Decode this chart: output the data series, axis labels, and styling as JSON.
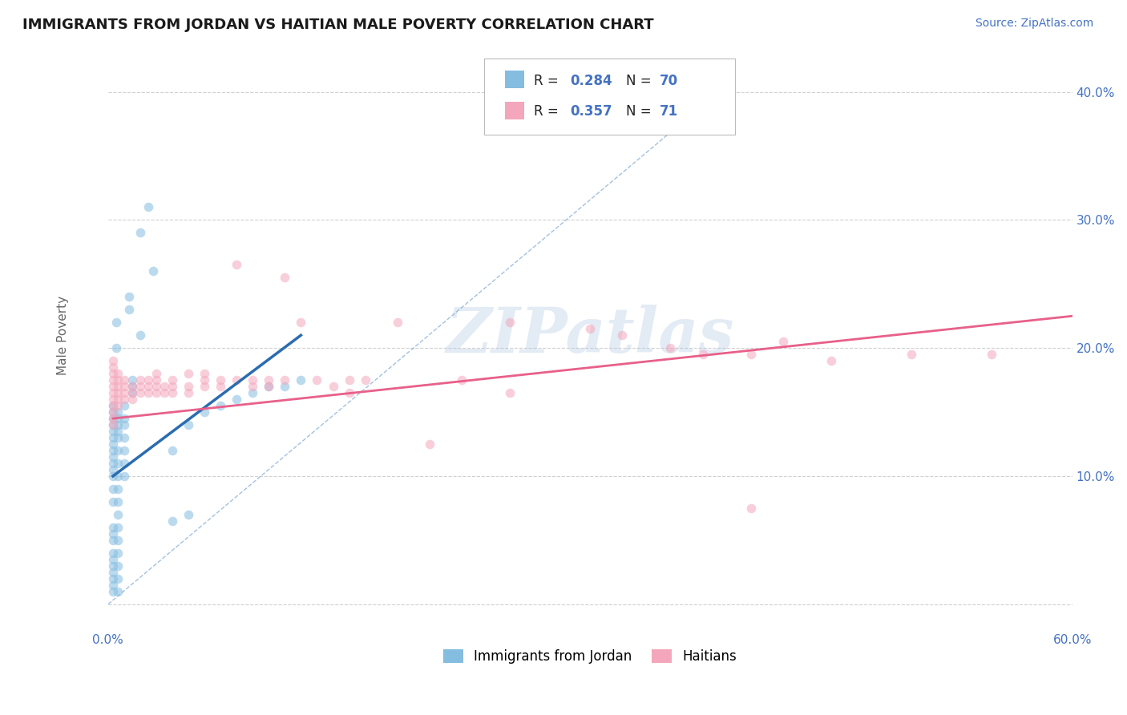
{
  "title": "IMMIGRANTS FROM JORDAN VS HAITIAN MALE POVERTY CORRELATION CHART",
  "source": "Source: ZipAtlas.com",
  "ylabel": "Male Poverty",
  "watermark": "ZIPatlas",
  "xlim": [
    0.0,
    0.6
  ],
  "ylim": [
    -0.02,
    0.44
  ],
  "xticks": [
    0.0,
    0.1,
    0.2,
    0.3,
    0.4,
    0.5,
    0.6
  ],
  "xticklabels": [
    "0.0%",
    "",
    "",
    "",
    "",
    "",
    "60.0%"
  ],
  "yticks": [
    0.0,
    0.1,
    0.2,
    0.3,
    0.4
  ],
  "yticklabels": [
    "",
    "10.0%",
    "20.0%",
    "30.0%",
    "40.0%"
  ],
  "color_jordan": "#85bde0",
  "color_haitian": "#f4a6bc",
  "color_jordan_line": "#2b6cb0",
  "color_haitian_line": "#e8608a",
  "jordan_scatter": [
    [
      0.003,
      0.08
    ],
    [
      0.003,
      0.09
    ],
    [
      0.003,
      0.1
    ],
    [
      0.003,
      0.105
    ],
    [
      0.003,
      0.11
    ],
    [
      0.003,
      0.115
    ],
    [
      0.003,
      0.12
    ],
    [
      0.003,
      0.125
    ],
    [
      0.003,
      0.13
    ],
    [
      0.003,
      0.135
    ],
    [
      0.003,
      0.14
    ],
    [
      0.003,
      0.145
    ],
    [
      0.003,
      0.15
    ],
    [
      0.003,
      0.155
    ],
    [
      0.003,
      0.06
    ],
    [
      0.003,
      0.055
    ],
    [
      0.003,
      0.05
    ],
    [
      0.003,
      0.04
    ],
    [
      0.003,
      0.035
    ],
    [
      0.003,
      0.03
    ],
    [
      0.003,
      0.025
    ],
    [
      0.003,
      0.02
    ],
    [
      0.003,
      0.015
    ],
    [
      0.003,
      0.01
    ],
    [
      0.006,
      0.15
    ],
    [
      0.006,
      0.145
    ],
    [
      0.006,
      0.14
    ],
    [
      0.006,
      0.135
    ],
    [
      0.006,
      0.13
    ],
    [
      0.006,
      0.12
    ],
    [
      0.006,
      0.11
    ],
    [
      0.006,
      0.1
    ],
    [
      0.006,
      0.09
    ],
    [
      0.006,
      0.08
    ],
    [
      0.006,
      0.07
    ],
    [
      0.006,
      0.06
    ],
    [
      0.006,
      0.05
    ],
    [
      0.006,
      0.04
    ],
    [
      0.006,
      0.03
    ],
    [
      0.006,
      0.02
    ],
    [
      0.006,
      0.01
    ],
    [
      0.01,
      0.155
    ],
    [
      0.01,
      0.145
    ],
    [
      0.01,
      0.14
    ],
    [
      0.01,
      0.13
    ],
    [
      0.01,
      0.12
    ],
    [
      0.01,
      0.11
    ],
    [
      0.01,
      0.1
    ],
    [
      0.015,
      0.175
    ],
    [
      0.015,
      0.17
    ],
    [
      0.015,
      0.165
    ],
    [
      0.02,
      0.29
    ],
    [
      0.02,
      0.21
    ],
    [
      0.025,
      0.31
    ],
    [
      0.005,
      0.22
    ],
    [
      0.005,
      0.2
    ],
    [
      0.013,
      0.24
    ],
    [
      0.013,
      0.23
    ],
    [
      0.028,
      0.26
    ],
    [
      0.04,
      0.12
    ],
    [
      0.05,
      0.14
    ],
    [
      0.06,
      0.15
    ],
    [
      0.07,
      0.155
    ],
    [
      0.08,
      0.16
    ],
    [
      0.09,
      0.165
    ],
    [
      0.1,
      0.17
    ],
    [
      0.11,
      0.17
    ],
    [
      0.12,
      0.175
    ],
    [
      0.04,
      0.065
    ],
    [
      0.05,
      0.07
    ]
  ],
  "haitian_scatter": [
    [
      0.003,
      0.14
    ],
    [
      0.003,
      0.145
    ],
    [
      0.003,
      0.15
    ],
    [
      0.003,
      0.155
    ],
    [
      0.003,
      0.16
    ],
    [
      0.003,
      0.165
    ],
    [
      0.003,
      0.17
    ],
    [
      0.003,
      0.175
    ],
    [
      0.003,
      0.18
    ],
    [
      0.003,
      0.185
    ],
    [
      0.003,
      0.19
    ],
    [
      0.006,
      0.155
    ],
    [
      0.006,
      0.16
    ],
    [
      0.006,
      0.165
    ],
    [
      0.006,
      0.17
    ],
    [
      0.006,
      0.175
    ],
    [
      0.006,
      0.18
    ],
    [
      0.01,
      0.16
    ],
    [
      0.01,
      0.165
    ],
    [
      0.01,
      0.17
    ],
    [
      0.01,
      0.175
    ],
    [
      0.015,
      0.16
    ],
    [
      0.015,
      0.165
    ],
    [
      0.015,
      0.17
    ],
    [
      0.02,
      0.165
    ],
    [
      0.02,
      0.17
    ],
    [
      0.02,
      0.175
    ],
    [
      0.025,
      0.165
    ],
    [
      0.025,
      0.17
    ],
    [
      0.025,
      0.175
    ],
    [
      0.03,
      0.165
    ],
    [
      0.03,
      0.17
    ],
    [
      0.03,
      0.175
    ],
    [
      0.03,
      0.18
    ],
    [
      0.035,
      0.165
    ],
    [
      0.035,
      0.17
    ],
    [
      0.04,
      0.165
    ],
    [
      0.04,
      0.17
    ],
    [
      0.04,
      0.175
    ],
    [
      0.05,
      0.165
    ],
    [
      0.05,
      0.17
    ],
    [
      0.05,
      0.18
    ],
    [
      0.06,
      0.17
    ],
    [
      0.06,
      0.175
    ],
    [
      0.06,
      0.18
    ],
    [
      0.07,
      0.17
    ],
    [
      0.07,
      0.175
    ],
    [
      0.08,
      0.175
    ],
    [
      0.08,
      0.265
    ],
    [
      0.09,
      0.17
    ],
    [
      0.09,
      0.175
    ],
    [
      0.1,
      0.17
    ],
    [
      0.1,
      0.175
    ],
    [
      0.11,
      0.255
    ],
    [
      0.11,
      0.175
    ],
    [
      0.12,
      0.22
    ],
    [
      0.13,
      0.175
    ],
    [
      0.14,
      0.17
    ],
    [
      0.15,
      0.175
    ],
    [
      0.15,
      0.165
    ],
    [
      0.16,
      0.175
    ],
    [
      0.18,
      0.22
    ],
    [
      0.2,
      0.125
    ],
    [
      0.22,
      0.175
    ],
    [
      0.25,
      0.22
    ],
    [
      0.25,
      0.165
    ],
    [
      0.3,
      0.215
    ],
    [
      0.32,
      0.21
    ],
    [
      0.35,
      0.2
    ],
    [
      0.37,
      0.195
    ],
    [
      0.4,
      0.195
    ],
    [
      0.42,
      0.205
    ],
    [
      0.45,
      0.19
    ],
    [
      0.5,
      0.195
    ],
    [
      0.55,
      0.195
    ],
    [
      0.4,
      0.075
    ]
  ],
  "background_color": "#ffffff",
  "grid_color": "#d0d0d0",
  "title_color": "#1a1a1a",
  "axis_label_color": "#4472c4",
  "marker_size": 70,
  "marker_alpha": 0.55,
  "jordan_line_x": [
    0.003,
    0.12
  ],
  "jordan_line_y": [
    0.1,
    0.21
  ],
  "haitian_line_x": [
    0.003,
    0.6
  ],
  "haitian_line_y": [
    0.145,
    0.225
  ]
}
